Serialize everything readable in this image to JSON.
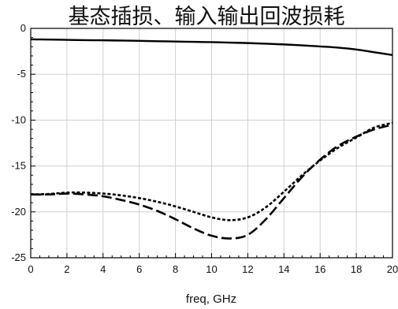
{
  "chart_data": {
    "type": "line",
    "title": "基态插损、输入输出回波损耗",
    "xlabel": "freq, GHz",
    "ylabel": "",
    "xlim": [
      0,
      20
    ],
    "ylim": [
      -25,
      0
    ],
    "x_ticks": [
      0,
      2,
      4,
      6,
      8,
      10,
      12,
      14,
      16,
      18,
      20
    ],
    "y_ticks": [
      0,
      -5,
      -10,
      -15,
      -20,
      -25
    ],
    "grid": true,
    "legend": "none",
    "series": [
      {
        "style": "solid",
        "color": "#000000",
        "x": [
          0,
          1,
          2,
          3,
          4,
          5,
          6,
          7,
          8,
          9,
          10,
          11,
          12,
          13,
          14,
          15,
          16,
          17,
          18,
          19,
          20
        ],
        "y": [
          -1.2,
          -1.22,
          -1.25,
          -1.28,
          -1.3,
          -1.33,
          -1.36,
          -1.4,
          -1.43,
          -1.47,
          -1.5,
          -1.55,
          -1.6,
          -1.67,
          -1.75,
          -1.85,
          -1.97,
          -2.1,
          -2.3,
          -2.6,
          -2.9
        ]
      },
      {
        "style": "dotted",
        "color": "#000000",
        "x": [
          0,
          1,
          2,
          3,
          4,
          5,
          6,
          7,
          8,
          9,
          10,
          11,
          12,
          13,
          14,
          15,
          16,
          17,
          18,
          19,
          20
        ],
        "y": [
          -18.1,
          -18.05,
          -17.9,
          -17.9,
          -18.0,
          -18.2,
          -18.5,
          -18.9,
          -19.4,
          -20.0,
          -20.6,
          -20.9,
          -20.6,
          -19.5,
          -17.8,
          -16.0,
          -14.4,
          -13.0,
          -11.9,
          -10.8,
          -10.3
        ]
      },
      {
        "style": "dashed",
        "color": "#000000",
        "x": [
          0,
          1,
          2,
          3,
          4,
          5,
          6,
          7,
          8,
          9,
          10,
          11,
          12,
          13,
          14,
          15,
          16,
          17,
          18,
          19,
          20
        ],
        "y": [
          -18.1,
          -18.1,
          -18.0,
          -18.1,
          -18.3,
          -18.7,
          -19.2,
          -19.9,
          -20.8,
          -21.8,
          -22.6,
          -22.9,
          -22.5,
          -20.8,
          -18.5,
          -16.2,
          -14.3,
          -12.8,
          -11.8,
          -11.0,
          -10.5
        ]
      }
    ]
  }
}
